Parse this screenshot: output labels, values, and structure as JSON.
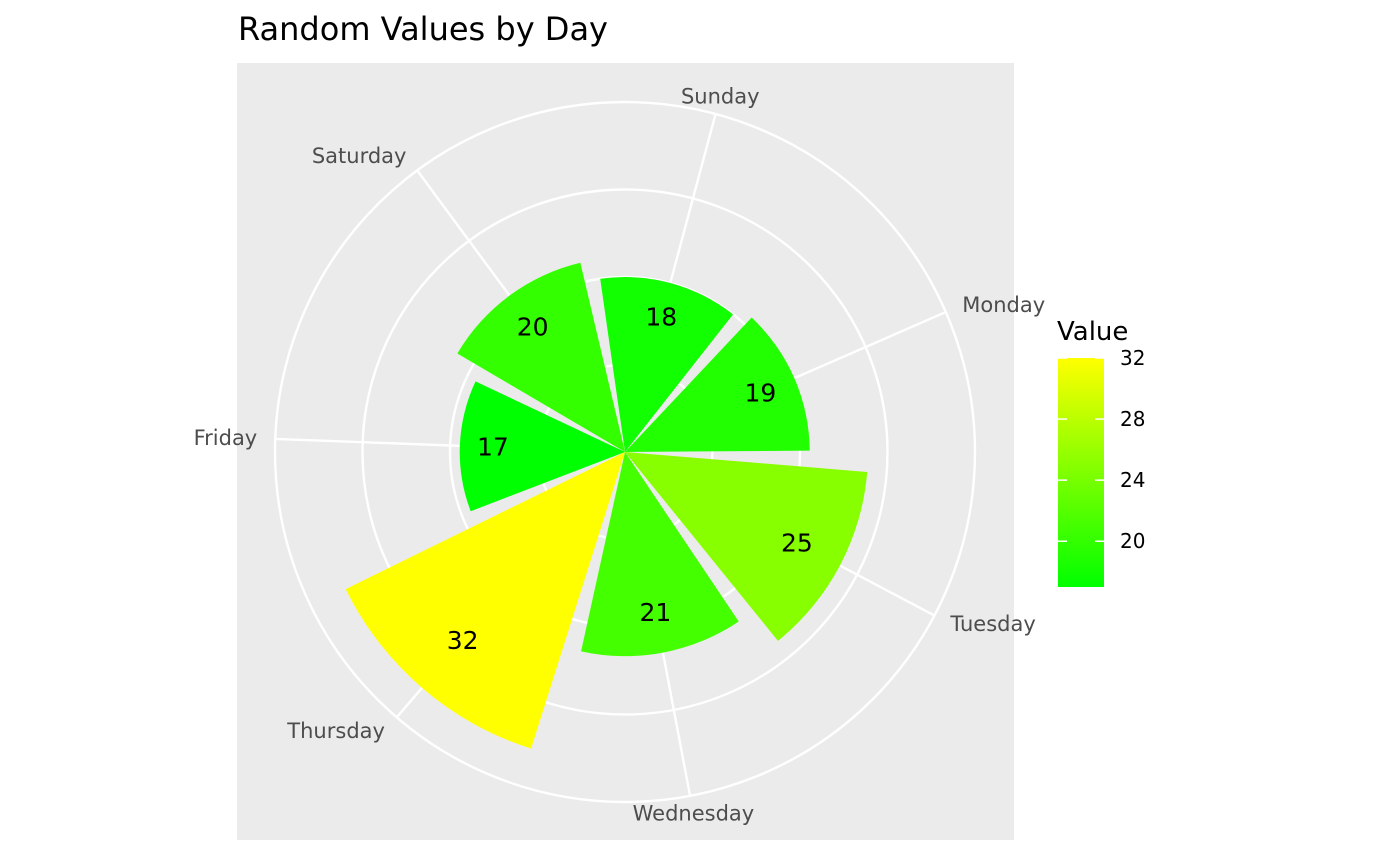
{
  "chart_data": {
    "type": "bar",
    "coordinate_system": "polar",
    "title": "Random Values by Day",
    "categories": [
      "Sunday",
      "Monday",
      "Tuesday",
      "Wednesday",
      "Thursday",
      "Friday",
      "Saturday"
    ],
    "values": [
      18,
      19,
      25,
      21,
      32,
      17,
      20
    ],
    "data_labels": [
      "18",
      "19",
      "25",
      "21",
      "32",
      "17",
      "20"
    ],
    "grid": true,
    "radial_range": [
      0,
      36
    ],
    "panel_background": "#ebebeb",
    "grid_color": "#ffffff",
    "legend": {
      "title": "Value",
      "position": "right",
      "type": "colorbar",
      "range": [
        17,
        32
      ],
      "ticks": [
        20,
        24,
        28,
        32
      ],
      "tick_labels": [
        "20",
        "24",
        "28",
        "32"
      ],
      "low_color": "#00ff00",
      "high_color": "#ffff00"
    }
  }
}
